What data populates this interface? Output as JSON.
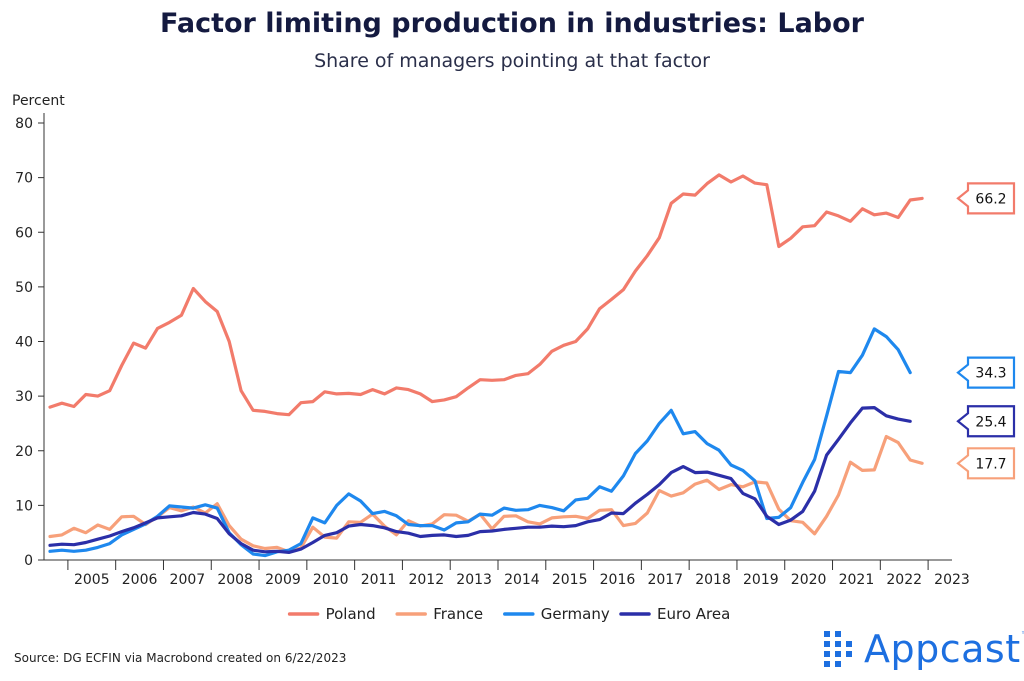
{
  "chart_data": {
    "type": "line",
    "title": "Factor limiting production in industries: Labor",
    "subtitle": "Share of managers pointing at that factor",
    "ylabel": "Percent",
    "ylim": [
      0,
      80
    ],
    "yticks": [
      0,
      10,
      20,
      30,
      40,
      50,
      60,
      70,
      80
    ],
    "xlim": [
      2004.5,
      2023.5
    ],
    "year_labels": [
      "2005",
      "2006",
      "2007",
      "2008",
      "2009",
      "2010",
      "2011",
      "2012",
      "2013",
      "2014",
      "2015",
      "2016",
      "2017",
      "2018",
      "2019",
      "2020",
      "2021",
      "2022",
      "2023"
    ],
    "x_start": 2004.625,
    "x_step": 0.25,
    "legend_position": "bottom",
    "series": [
      {
        "name": "Poland",
        "color": "#f27b6b",
        "end_label": "66.2",
        "values": [
          28,
          28.7,
          28.1,
          30.3,
          30,
          31,
          35.6,
          39.7,
          38.8,
          42.4,
          43.5,
          44.8,
          49.7,
          47.3,
          45.5,
          40,
          31,
          27.4,
          27.2,
          26.8,
          26.6,
          28.8,
          29,
          30.8,
          30.4,
          30.5,
          30.3,
          31.2,
          30.4,
          31.5,
          31.2,
          30.4,
          29,
          29.3,
          29.9,
          31.5,
          33,
          32.9,
          33,
          33.8,
          34.1,
          35.8,
          38.2,
          39.3,
          40,
          42.3,
          46,
          47.7,
          49.5,
          52.9,
          55.7,
          59,
          65.3,
          67,
          66.8,
          68.9,
          70.5,
          69.2,
          70.3,
          69,
          68.7,
          57.4,
          58.9,
          61,
          61.2,
          63.7,
          63,
          62,
          64.3,
          63.2,
          63.5,
          62.7,
          65.9,
          66.2
        ]
      },
      {
        "name": "France",
        "color": "#f7a07a",
        "end_label": "17.7",
        "values": [
          4.3,
          4.6,
          5.8,
          5,
          6.4,
          5.6,
          7.9,
          8,
          6.5,
          7.9,
          9.6,
          9,
          9.7,
          8.6,
          10.3,
          6.3,
          3.8,
          2.6,
          2.1,
          2.3,
          1.5,
          2.2,
          6,
          4.2,
          4,
          7,
          6.9,
          8.4,
          6.2,
          4.6,
          7.2,
          6.2,
          6.6,
          8.3,
          8.2,
          7.1,
          8.4,
          5.7,
          8,
          8.1,
          7,
          6.6,
          7.7,
          7.9,
          8,
          7.6,
          9.1,
          9.2,
          6.3,
          6.7,
          8.6,
          12.7,
          11.7,
          12.3,
          13.9,
          14.6,
          12.9,
          13.8,
          13.4,
          14.3,
          14.1,
          9.3,
          7.2,
          6.9,
          4.8,
          8,
          11.9,
          17.9,
          16.4,
          16.5,
          22.6,
          21.5,
          18.3,
          17.7
        ]
      },
      {
        "name": "Germany",
        "color": "#1e88ee",
        "end_label": "34.3",
        "values": [
          1.6,
          1.8,
          1.6,
          1.8,
          2.3,
          3,
          4.6,
          5.6,
          6.6,
          8,
          9.9,
          9.7,
          9.5,
          10.1,
          9.5,
          5,
          2.8,
          1.1,
          0.8,
          1.5,
          1.8,
          3,
          7.7,
          6.8,
          10,
          12.1,
          10.8,
          8.5,
          8.9,
          8.1,
          6.5,
          6.3,
          6.3,
          5.5,
          6.8,
          7,
          8.4,
          8.2,
          9.5,
          9.1,
          9.2,
          10,
          9.6,
          9,
          11,
          11.3,
          13.4,
          12.6,
          15.4,
          19.5,
          21.8,
          25,
          27.4,
          23.1,
          23.5,
          21.3,
          20.1,
          17.4,
          16.4,
          14.5,
          7.6,
          7.8,
          9.6,
          14.2,
          18.4,
          26.4,
          34.5,
          34.3,
          37.5,
          42.3,
          40.9,
          38.5,
          34.3
        ]
      },
      {
        "name": "Euro Area",
        "color": "#2b2fa8",
        "end_label": "25.4",
        "values": [
          2.7,
          2.9,
          2.8,
          3.2,
          3.8,
          4.4,
          5.2,
          5.9,
          6.8,
          7.7,
          7.9,
          8.1,
          8.7,
          8.4,
          7.6,
          4.8,
          3,
          1.8,
          1.5,
          1.6,
          1.4,
          2,
          3.2,
          4.5,
          5,
          6.2,
          6.5,
          6.3,
          5.9,
          5.2,
          4.9,
          4.3,
          4.5,
          4.6,
          4.3,
          4.5,
          5.2,
          5.3,
          5.6,
          5.8,
          6,
          6,
          6.2,
          6.1,
          6.3,
          7,
          7.4,
          8.6,
          8.5,
          10.4,
          12,
          13.8,
          16,
          17.1,
          16,
          16.1,
          15.5,
          14.9,
          12.2,
          11.2,
          8,
          6.5,
          7.3,
          8.9,
          12.6,
          19.2,
          22.1,
          25.1,
          27.8,
          27.9,
          26.4,
          25.8,
          25.4
        ]
      }
    ]
  },
  "source_text": "Source: DG ECFIN via Macrobond created on 6/22/2023",
  "logo": {
    "text": "Appcast",
    "tm": "™",
    "icon": "appcast-grid-icon"
  }
}
